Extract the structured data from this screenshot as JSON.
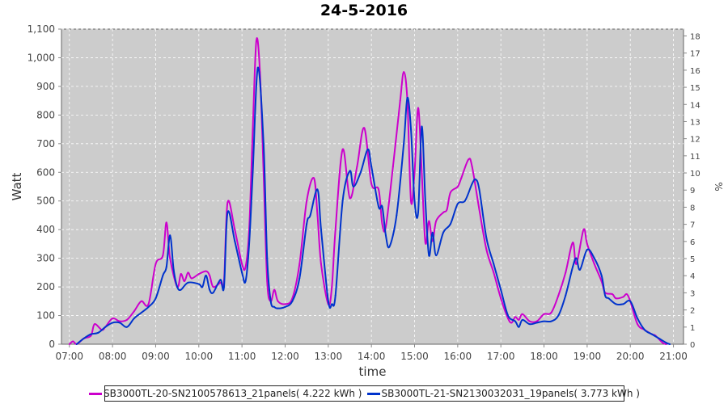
{
  "chart_data": {
    "type": "line",
    "title": "24-5-2016",
    "xlabel": "time",
    "ylabel": "Watt",
    "y2label": "%",
    "xlim": [
      "06:49",
      "21:14"
    ],
    "ylim": [
      0,
      1100
    ],
    "y2lim": [
      0,
      18.4
    ],
    "x_ticks": [
      "07:00",
      "08:00",
      "09:00",
      "10:00",
      "11:00",
      "12:00",
      "13:00",
      "14:00",
      "15:00",
      "16:00",
      "17:00",
      "18:00",
      "19:00",
      "20:00",
      "21:00"
    ],
    "y_ticks": [
      "0",
      "100",
      "200",
      "300",
      "400",
      "500",
      "600",
      "700",
      "800",
      "900",
      "1,000",
      "1,100"
    ],
    "y2_ticks": [
      "0",
      "1",
      "2",
      "3",
      "4",
      "5",
      "6",
      "7",
      "8",
      "9",
      "10",
      "11",
      "12",
      "13",
      "14",
      "15",
      "16",
      "17",
      "18"
    ],
    "grid": true,
    "background": "#cccccc",
    "legend_position": "bottom",
    "series": [
      {
        "name": "SB3000TL-20-SN2100578613_21panels( 4.222 kWh )",
        "color": "#cc00cc",
        "points": [
          [
            "07:00",
            0
          ],
          [
            "07:05",
            10
          ],
          [
            "07:10",
            0
          ],
          [
            "07:20",
            20
          ],
          [
            "07:30",
            30
          ],
          [
            "07:35",
            70
          ],
          [
            "07:45",
            50
          ],
          [
            "07:50",
            60
          ],
          [
            "08:00",
            90
          ],
          [
            "08:10",
            80
          ],
          [
            "08:20",
            85
          ],
          [
            "08:30",
            115
          ],
          [
            "08:40",
            150
          ],
          [
            "08:50",
            140
          ],
          [
            "09:00",
            280
          ],
          [
            "09:10",
            310
          ],
          [
            "09:15",
            425
          ],
          [
            "09:20",
            300
          ],
          [
            "09:30",
            200
          ],
          [
            "09:35",
            245
          ],
          [
            "09:40",
            220
          ],
          [
            "09:45",
            250
          ],
          [
            "09:50",
            230
          ],
          [
            "10:00",
            245
          ],
          [
            "10:10",
            255
          ],
          [
            "10:15",
            240
          ],
          [
            "10:20",
            200
          ],
          [
            "10:30",
            215
          ],
          [
            "10:35",
            220
          ],
          [
            "10:40",
            495
          ],
          [
            "10:50",
            400
          ],
          [
            "11:00",
            280
          ],
          [
            "11:05",
            270
          ],
          [
            "11:10",
            400
          ],
          [
            "11:15",
            750
          ],
          [
            "11:20",
            1060
          ],
          [
            "11:25",
            950
          ],
          [
            "11:30",
            600
          ],
          [
            "11:35",
            220
          ],
          [
            "11:40",
            150
          ],
          [
            "11:45",
            190
          ],
          [
            "11:50",
            150
          ],
          [
            "12:00",
            140
          ],
          [
            "12:10",
            160
          ],
          [
            "12:20",
            280
          ],
          [
            "12:30",
            500
          ],
          [
            "12:40",
            580
          ],
          [
            "12:45",
            450
          ],
          [
            "12:50",
            280
          ],
          [
            "13:00",
            140
          ],
          [
            "13:05",
            200
          ],
          [
            "13:10",
            400
          ],
          [
            "13:20",
            680
          ],
          [
            "13:30",
            510
          ],
          [
            "13:40",
            620
          ],
          [
            "13:50",
            755
          ],
          [
            "14:00",
            560
          ],
          [
            "14:10",
            540
          ],
          [
            "14:15",
            420
          ],
          [
            "14:20",
            410
          ],
          [
            "14:30",
            620
          ],
          [
            "14:40",
            850
          ],
          [
            "14:45",
            950
          ],
          [
            "14:50",
            850
          ],
          [
            "14:55",
            500
          ],
          [
            "15:00",
            600
          ],
          [
            "15:05",
            825
          ],
          [
            "15:10",
            600
          ],
          [
            "15:15",
            355
          ],
          [
            "15:20",
            430
          ],
          [
            "15:25",
            360
          ],
          [
            "15:30",
            430
          ],
          [
            "15:40",
            460
          ],
          [
            "15:45",
            470
          ],
          [
            "15:50",
            530
          ],
          [
            "16:00",
            550
          ],
          [
            "16:05",
            580
          ],
          [
            "16:15",
            645
          ],
          [
            "16:20",
            620
          ],
          [
            "16:30",
            470
          ],
          [
            "16:40",
            330
          ],
          [
            "16:50",
            250
          ],
          [
            "17:00",
            160
          ],
          [
            "17:10",
            90
          ],
          [
            "17:15",
            75
          ],
          [
            "17:20",
            95
          ],
          [
            "17:25",
            85
          ],
          [
            "17:30",
            105
          ],
          [
            "17:40",
            80
          ],
          [
            "17:50",
            80
          ],
          [
            "18:00",
            105
          ],
          [
            "18:10",
            110
          ],
          [
            "18:20",
            170
          ],
          [
            "18:30",
            250
          ],
          [
            "18:40",
            355
          ],
          [
            "18:45",
            280
          ],
          [
            "18:55",
            400
          ],
          [
            "19:00",
            350
          ],
          [
            "19:10",
            280
          ],
          [
            "19:20",
            220
          ],
          [
            "19:25",
            180
          ],
          [
            "19:35",
            175
          ],
          [
            "19:40",
            160
          ],
          [
            "19:50",
            165
          ],
          [
            "19:55",
            175
          ],
          [
            "20:00",
            150
          ],
          [
            "20:10",
            70
          ],
          [
            "20:20",
            50
          ],
          [
            "20:30",
            35
          ],
          [
            "20:35",
            30
          ],
          [
            "20:45",
            5
          ],
          [
            "20:50",
            0
          ]
        ]
      },
      {
        "name": "SB3000TL-21-SN2130032031_19panels( 3.773 kWh )",
        "color": "#0033cc",
        "points": [
          [
            "07:10",
            0
          ],
          [
            "07:20",
            20
          ],
          [
            "07:30",
            35
          ],
          [
            "07:40",
            40
          ],
          [
            "07:50",
            60
          ],
          [
            "08:00",
            75
          ],
          [
            "08:10",
            75
          ],
          [
            "08:20",
            60
          ],
          [
            "08:30",
            90
          ],
          [
            "08:40",
            110
          ],
          [
            "08:50",
            130
          ],
          [
            "09:00",
            160
          ],
          [
            "09:10",
            240
          ],
          [
            "09:15",
            270
          ],
          [
            "09:20",
            380
          ],
          [
            "09:25",
            260
          ],
          [
            "09:30",
            200
          ],
          [
            "09:35",
            190
          ],
          [
            "09:45",
            215
          ],
          [
            "10:00",
            210
          ],
          [
            "10:05",
            200
          ],
          [
            "10:10",
            240
          ],
          [
            "10:15",
            190
          ],
          [
            "10:20",
            180
          ],
          [
            "10:30",
            225
          ],
          [
            "10:35",
            200
          ],
          [
            "10:40",
            460
          ],
          [
            "10:50",
            360
          ],
          [
            "11:00",
            250
          ],
          [
            "11:05",
            220
          ],
          [
            "11:10",
            350
          ],
          [
            "11:15",
            600
          ],
          [
            "11:22",
            965
          ],
          [
            "11:30",
            700
          ],
          [
            "11:35",
            300
          ],
          [
            "11:40",
            150
          ],
          [
            "11:45",
            130
          ],
          [
            "11:50",
            125
          ],
          [
            "12:00",
            130
          ],
          [
            "12:10",
            150
          ],
          [
            "12:20",
            230
          ],
          [
            "12:30",
            420
          ],
          [
            "12:35",
            450
          ],
          [
            "12:45",
            540
          ],
          [
            "12:50",
            400
          ],
          [
            "13:00",
            150
          ],
          [
            "13:05",
            140
          ],
          [
            "13:10",
            170
          ],
          [
            "13:20",
            500
          ],
          [
            "13:30",
            605
          ],
          [
            "13:35",
            550
          ],
          [
            "13:45",
            600
          ],
          [
            "13:55",
            680
          ],
          [
            "14:00",
            620
          ],
          [
            "14:10",
            480
          ],
          [
            "14:15",
            480
          ],
          [
            "14:20",
            380
          ],
          [
            "14:25",
            340
          ],
          [
            "14:35",
            450
          ],
          [
            "14:45",
            700
          ],
          [
            "14:50",
            860
          ],
          [
            "14:55",
            750
          ],
          [
            "15:00",
            500
          ],
          [
            "15:05",
            460
          ],
          [
            "15:10",
            760
          ],
          [
            "15:15",
            500
          ],
          [
            "15:20",
            310
          ],
          [
            "15:25",
            390
          ],
          [
            "15:30",
            310
          ],
          [
            "15:40",
            390
          ],
          [
            "15:50",
            420
          ],
          [
            "16:00",
            490
          ],
          [
            "16:10",
            500
          ],
          [
            "16:20",
            560
          ],
          [
            "16:25",
            575
          ],
          [
            "16:30",
            540
          ],
          [
            "16:40",
            370
          ],
          [
            "16:50",
            280
          ],
          [
            "17:00",
            190
          ],
          [
            "17:10",
            100
          ],
          [
            "17:20",
            80
          ],
          [
            "17:25",
            60
          ],
          [
            "17:30",
            85
          ],
          [
            "17:40",
            70
          ],
          [
            "17:50",
            75
          ],
          [
            "18:00",
            80
          ],
          [
            "18:10",
            80
          ],
          [
            "18:20",
            100
          ],
          [
            "18:30",
            170
          ],
          [
            "18:40",
            270
          ],
          [
            "18:45",
            300
          ],
          [
            "18:50",
            260
          ],
          [
            "19:00",
            330
          ],
          [
            "19:10",
            300
          ],
          [
            "19:20",
            240
          ],
          [
            "19:25",
            170
          ],
          [
            "19:30",
            160
          ],
          [
            "19:40",
            140
          ],
          [
            "19:50",
            140
          ],
          [
            "20:00",
            150
          ],
          [
            "20:10",
            90
          ],
          [
            "20:20",
            50
          ],
          [
            "20:30",
            35
          ],
          [
            "20:40",
            20
          ],
          [
            "20:50",
            5
          ],
          [
            "20:55",
            0
          ]
        ]
      }
    ]
  }
}
